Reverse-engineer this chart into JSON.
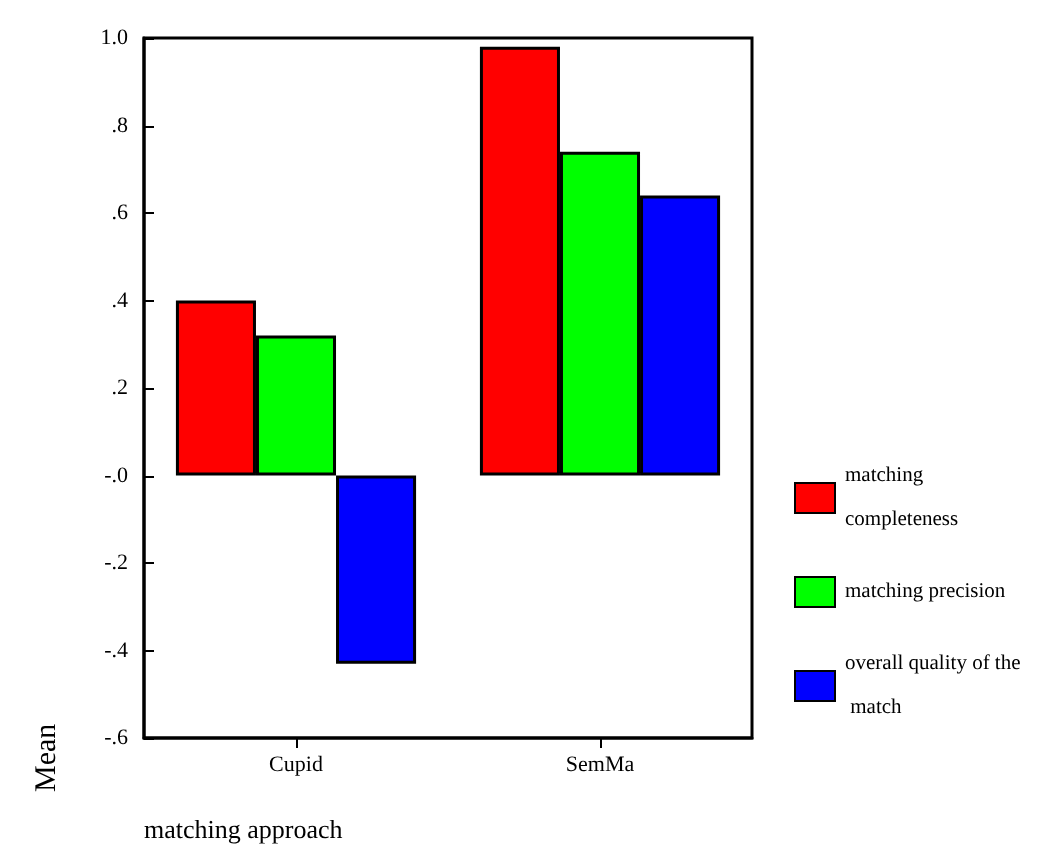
{
  "chart_data": {
    "type": "bar",
    "xlabel": "matching approach",
    "ylabel": "Mean",
    "categories": [
      "Cupid",
      "SemMa"
    ],
    "series": [
      {
        "name": "matching completeness",
        "color": "#ff0000",
        "values": [
          0.4,
          0.98
        ]
      },
      {
        "name": "matching precision",
        "color": "#00ff00",
        "values": [
          0.32,
          0.74
        ]
      },
      {
        "name": "overall quality of the match",
        "color": "#0000ff",
        "values": [
          -0.43,
          0.64
        ]
      }
    ],
    "ylim": [
      -0.6,
      1.0
    ],
    "yticks": [
      {
        "value": 1.0,
        "label": "1.0"
      },
      {
        "value": 0.8,
        "label": ".8"
      },
      {
        "value": 0.6,
        "label": ".6"
      },
      {
        "value": 0.4,
        "label": ".4"
      },
      {
        "value": 0.2,
        "label": ".2"
      },
      {
        "value": 0,
        "label": "-.0"
      },
      {
        "value": -0.2,
        "label": "-.2"
      },
      {
        "value": -0.4,
        "label": "-.4"
      },
      {
        "value": -0.6,
        "label": "-.6"
      }
    ],
    "grid": false,
    "legend": "right"
  }
}
